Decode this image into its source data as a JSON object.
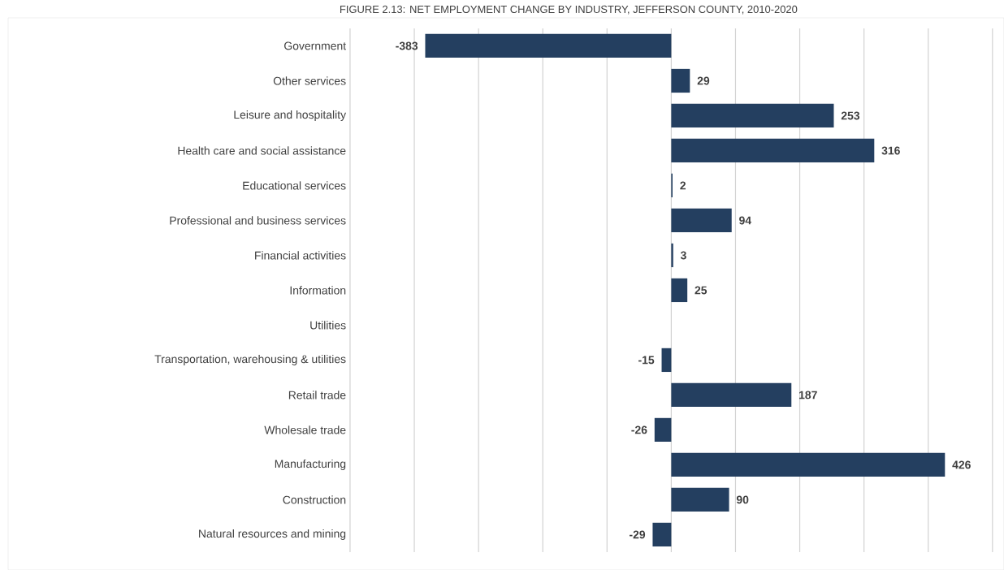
{
  "chart_data": {
    "type": "bar",
    "orientation": "horizontal",
    "title": "FIGURE 2.13: NET EMPLOYMENT CHANGE BY INDUSTRY, JEFFERSON COUNTY, 2010-2020",
    "categories": [
      "Government",
      "Other services",
      "Leisure and hospitality",
      "Health care and social assistance",
      "Educational services",
      "Professional and business services",
      "Financial activities",
      "Information",
      "Utilities",
      "Transportation, warehousing & utilities",
      "Retail trade",
      "Wholesale trade",
      "Manufacturing",
      "Construction",
      "Natural resources and mining"
    ],
    "values": [
      -383,
      29,
      253,
      316,
      2,
      94,
      3,
      25,
      null,
      -15,
      187,
      -26,
      426,
      90,
      -29
    ],
    "value_labels": [
      "-383",
      "29",
      "253",
      "316",
      "2",
      "94",
      "3",
      "25",
      null,
      "-15",
      "187",
      "-26",
      "426",
      "90",
      "-29"
    ],
    "color": "#243f60",
    "xlim": [
      -500,
      500
    ],
    "xticks": [
      {
        "value": -500,
        "label": null
      },
      {
        "value": -400,
        "label": null
      },
      {
        "value": -300,
        "label": null
      },
      {
        "value": -200,
        "label": null
      },
      {
        "value": -100,
        "label": null
      },
      {
        "value": 0,
        "label": null
      },
      {
        "value": 100,
        "label": null
      },
      {
        "value": 200,
        "label": null
      },
      {
        "value": 300,
        "label": null
      },
      {
        "value": 400,
        "label": null
      },
      {
        "value": 500,
        "label": null
      }
    ],
    "grid": "x",
    "tick_labels": "y"
  }
}
